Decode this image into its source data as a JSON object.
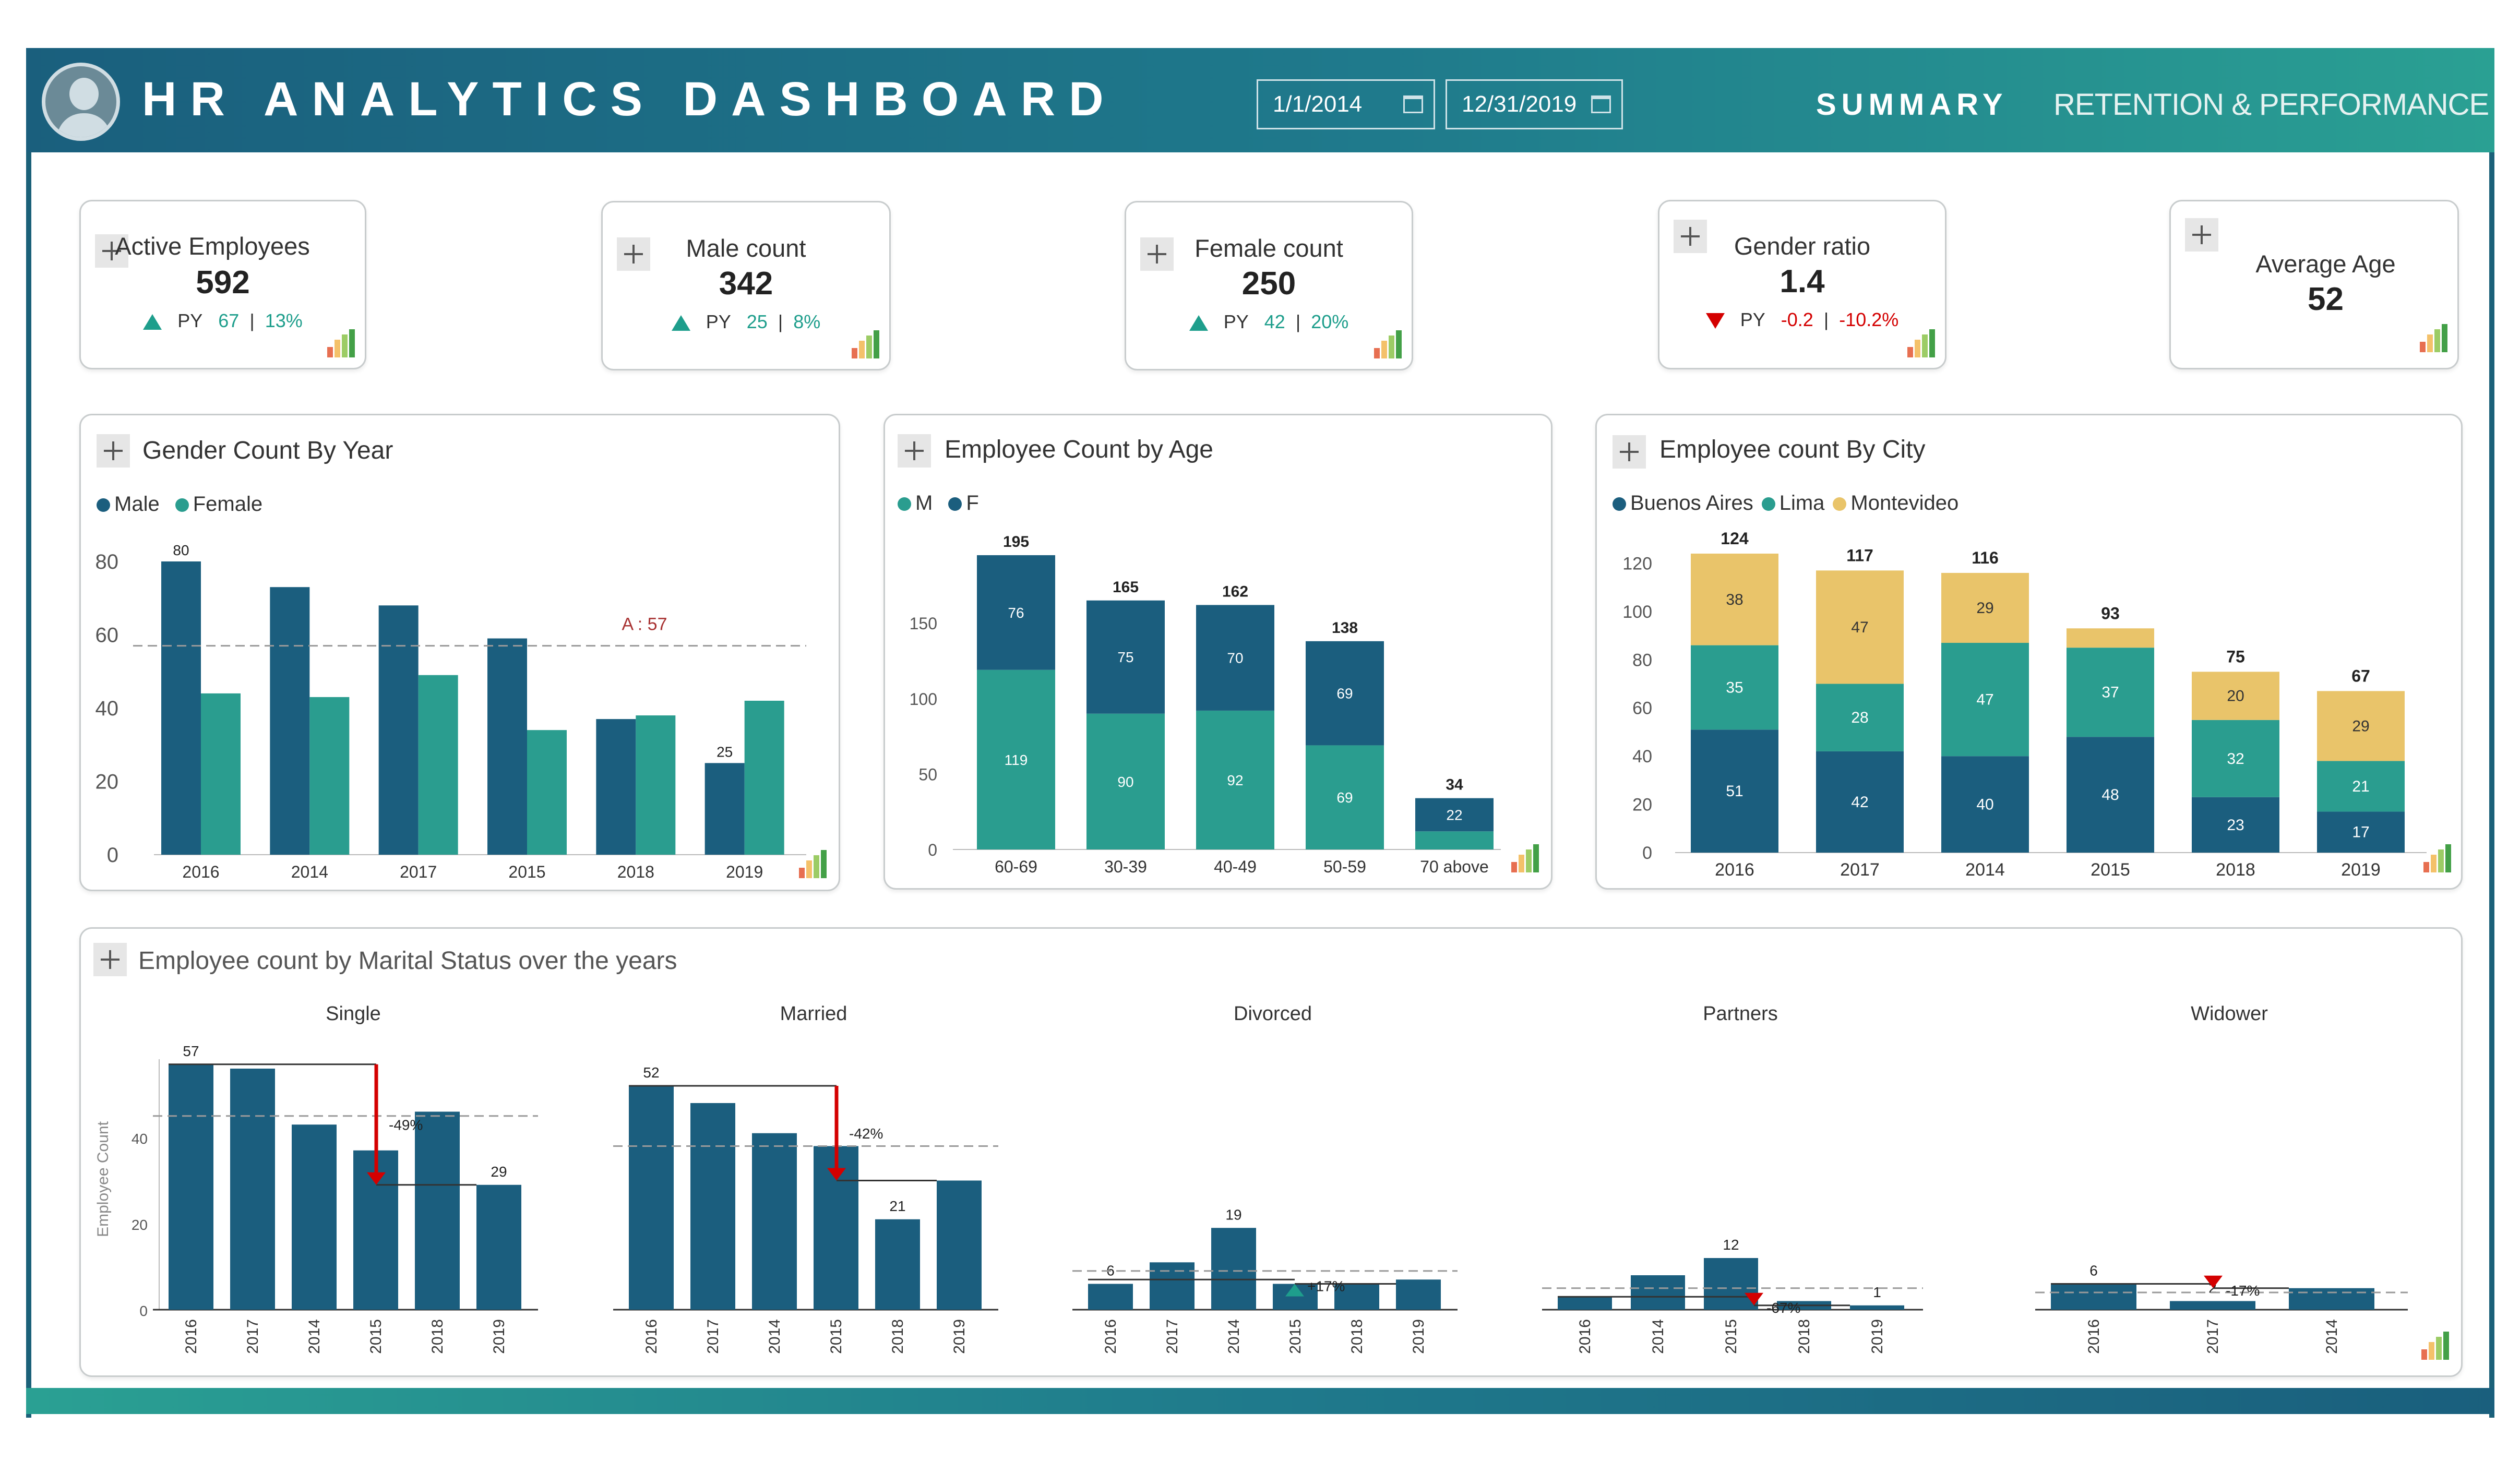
{
  "header": {
    "title": "HR ANALYTICS DASHBOARD",
    "date_start": "1/1/2014",
    "date_end": "12/31/2019",
    "tabs": [
      "SUMMARY",
      "RETENTION & PERFORMANCE"
    ]
  },
  "colors": {
    "male": "#1b5e7e",
    "female": "#2a9d8f",
    "montevideo": "#e9c46a",
    "up": "#1e9e8c",
    "down": "#d40000"
  },
  "kpis": [
    {
      "label": "Active Employees",
      "value": "592",
      "py_label": "PY",
      "py_value": "67",
      "py_sep": "|",
      "py_pct": "13%",
      "trend": "up"
    },
    {
      "label": "Male count",
      "value": "342",
      "py_label": "PY",
      "py_value": "25",
      "py_sep": "|",
      "py_pct": "8%",
      "trend": "up"
    },
    {
      "label": "Female count",
      "value": "250",
      "py_label": "PY",
      "py_value": "42",
      "py_sep": "|",
      "py_pct": "20%",
      "trend": "up"
    },
    {
      "label": "Gender ratio",
      "value": "1.4",
      "py_label": "PY",
      "py_value": "-0.2",
      "py_sep": "|",
      "py_pct": "-10.2%",
      "trend": "down"
    },
    {
      "label": "Average Age",
      "value": "52"
    }
  ],
  "gender_chart": {
    "title": "Gender Count By Year",
    "legend": [
      "Male",
      "Female"
    ]
  },
  "age_chart": {
    "title": "Employee Count by Age",
    "legend": [
      "M",
      "F"
    ]
  },
  "city_chart": {
    "title": "Employee count By City",
    "legend": [
      "Buenos Aires",
      "Lima",
      "Montevideo"
    ]
  },
  "marital_chart": {
    "title": "Employee count by Marital Status over the years",
    "panels": [
      "Single",
      "Married",
      "Divorced",
      "Partners",
      "Widower"
    ]
  },
  "chart_data": [
    {
      "type": "bar",
      "title": "Gender Count By Year",
      "categories": [
        "2016",
        "2014",
        "2017",
        "2015",
        "2018",
        "2019"
      ],
      "series": [
        {
          "name": "Male",
          "values": [
            80,
            73,
            68,
            59,
            37,
            25
          ]
        },
        {
          "name": "Female",
          "values": [
            44,
            43,
            49,
            34,
            38,
            42
          ]
        }
      ],
      "ylim": [
        0,
        80
      ],
      "yticks": [
        0,
        20,
        40,
        60,
        80
      ],
      "data_labels": [
        {
          "series": "Male",
          "category": "2016",
          "text": "80"
        },
        {
          "series": "Male",
          "category": "2019",
          "text": "25"
        }
      ],
      "average_line": {
        "value": 57,
        "label": "A : 57"
      },
      "legend": "top-left"
    },
    {
      "type": "bar",
      "stacked": true,
      "title": "Employee Count by Age",
      "categories": [
        "60-69",
        "30-39",
        "40-49",
        "50-59",
        "70 above"
      ],
      "series": [
        {
          "name": "M",
          "values": [
            76,
            75,
            70,
            69,
            22
          ]
        },
        {
          "name": "F",
          "values": [
            119,
            90,
            92,
            69,
            12
          ]
        }
      ],
      "totals": [
        195,
        165,
        162,
        138,
        34
      ],
      "segment_labels": {
        "M": [
          "76",
          "75",
          "70",
          "69",
          "22"
        ],
        "F": [
          "119",
          "90",
          "92",
          "69",
          ""
        ]
      },
      "ylim": [
        0,
        195
      ],
      "yticks": [
        0,
        50,
        100,
        150
      ],
      "legend": "top-left"
    },
    {
      "type": "bar",
      "stacked": true,
      "title": "Employee count By City",
      "categories": [
        "2016",
        "2017",
        "2014",
        "2015",
        "2018",
        "2019"
      ],
      "series": [
        {
          "name": "Buenos Aires",
          "values": [
            51,
            42,
            40,
            48,
            23,
            17
          ]
        },
        {
          "name": "Lima",
          "values": [
            35,
            28,
            47,
            37,
            32,
            21
          ]
        },
        {
          "name": "Montevideo",
          "values": [
            38,
            47,
            29,
            8,
            20,
            29
          ]
        }
      ],
      "totals": [
        124,
        117,
        116,
        93,
        75,
        67
      ],
      "segment_labels": {
        "Buenos Aires": [
          "51",
          "42",
          "40",
          "48",
          "23",
          "17"
        ],
        "Lima": [
          "35",
          "28",
          "47",
          "37",
          "32",
          "21"
        ],
        "Montevideo": [
          "38",
          "47",
          "29",
          "",
          "20",
          "29"
        ]
      },
      "ylim": [
        0,
        124
      ],
      "yticks": [
        0,
        20,
        40,
        60,
        80,
        100,
        120
      ],
      "legend": "top-left"
    },
    {
      "type": "bar",
      "title": "Single",
      "ylabel": "Employee Count",
      "categories": [
        "2016",
        "2017",
        "2014",
        "2015",
        "2018",
        "2019"
      ],
      "values": [
        57,
        56,
        43,
        37,
        46,
        29
      ],
      "labels": [
        "57",
        "",
        "",
        "",
        "",
        "29"
      ],
      "yticks": [
        0,
        20,
        40
      ],
      "change": "-49%",
      "change_dir": "down",
      "average": 45
    },
    {
      "type": "bar",
      "title": "Married",
      "categories": [
        "2016",
        "2017",
        "2014",
        "2015",
        "2018",
        "2019"
      ],
      "values": [
        52,
        48,
        41,
        38,
        21,
        30
      ],
      "labels": [
        "52",
        "",
        "",
        "",
        "21",
        ""
      ],
      "change": "-42%",
      "change_dir": "down",
      "average": 38
    },
    {
      "type": "bar",
      "title": "Divorced",
      "categories": [
        "2016",
        "2017",
        "2014",
        "2015",
        "2018",
        "2019"
      ],
      "values": [
        6,
        11,
        19,
        6,
        6,
        7
      ],
      "labels": [
        "6",
        "",
        "19",
        "",
        "",
        ""
      ],
      "change": "+17%",
      "change_dir": "up",
      "average": 9
    },
    {
      "type": "bar",
      "title": "Partners",
      "categories": [
        "2016",
        "2014",
        "2015",
        "2018",
        "2019"
      ],
      "values": [
        3,
        8,
        12,
        2,
        1
      ],
      "labels": [
        "",
        "",
        "12",
        "",
        "1"
      ],
      "change": "-67%",
      "change_dir": "down",
      "average": 5
    },
    {
      "type": "bar",
      "title": "Widower",
      "categories": [
        "2016",
        "2017",
        "2014"
      ],
      "values": [
        6,
        2,
        5
      ],
      "labels": [
        "6",
        "2",
        ""
      ],
      "change": "-17%",
      "change_dir": "down",
      "average": 4
    }
  ]
}
